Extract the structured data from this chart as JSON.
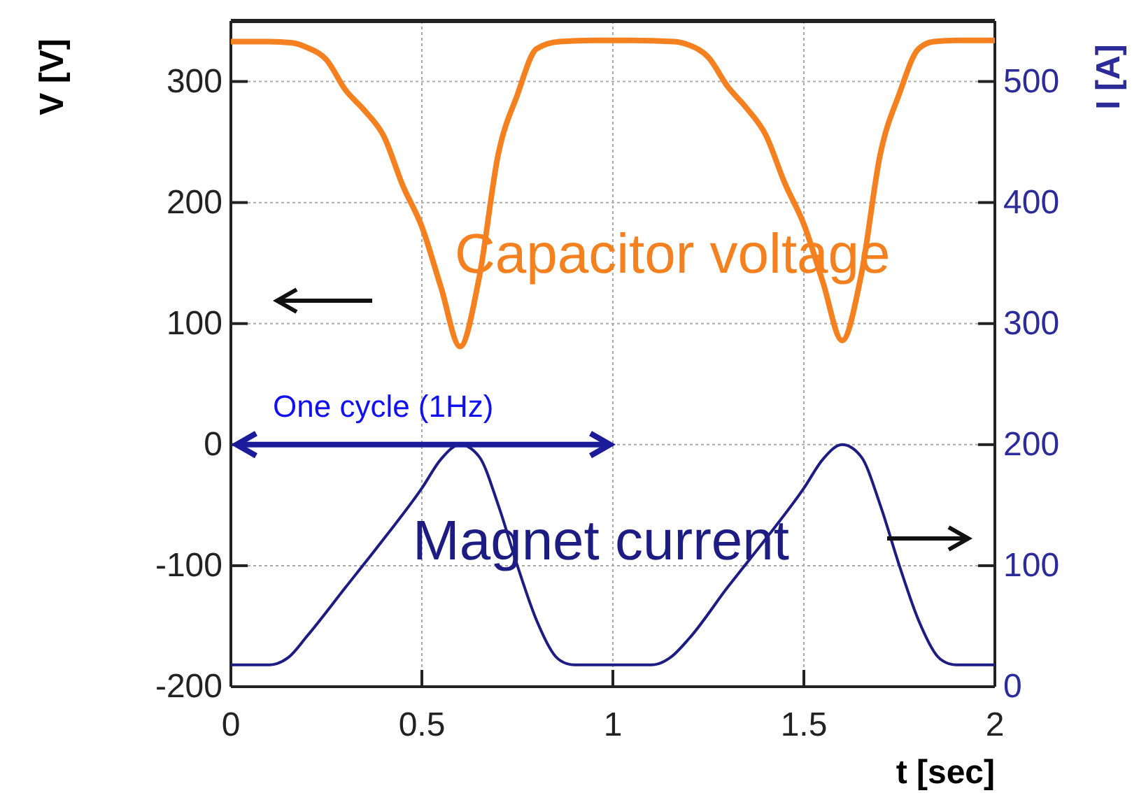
{
  "chart_data": {
    "type": "line",
    "xlabel": "t [sec]",
    "ylabel": "V [V]",
    "y2label": "I [A]",
    "xlim": [
      0,
      2
    ],
    "xticks": [
      0,
      0.5,
      1,
      1.5,
      2
    ],
    "ylim": [
      -200,
      350
    ],
    "yticks": [
      -200,
      -100,
      0,
      100,
      200,
      300
    ],
    "y2lim": [
      0,
      550
    ],
    "y2ticks": [
      0,
      100,
      200,
      300,
      400,
      500
    ],
    "grid": true,
    "line_style": "solid",
    "marker": "none",
    "series": [
      {
        "name": "Capacitor voltage",
        "color": "#f5801f",
        "x": [
          0,
          0.1,
          0.16,
          0.2,
          0.25,
          0.3,
          0.35,
          0.4,
          0.45,
          0.5,
          0.55,
          0.6,
          0.65,
          0.7,
          0.75,
          0.8,
          0.86,
          0.95,
          1.05,
          1.16,
          1.2,
          1.25,
          1.3,
          1.35,
          1.4,
          1.45,
          1.5,
          1.55,
          1.6,
          1.65,
          1.7,
          1.75,
          1.8,
          1.84,
          1.9,
          2
        ],
        "values": [
          333,
          333,
          332,
          328,
          318,
          293,
          276,
          255,
          214,
          180,
          130,
          81,
          138,
          240,
          289,
          327,
          333,
          334,
          334,
          333,
          330,
          320,
          296,
          278,
          256,
          216,
          182,
          134,
          86,
          140,
          240,
          290,
          327,
          333,
          334,
          334
        ]
      },
      {
        "name": "Magnet current",
        "color": "#1c1c82",
        "axis": "y2",
        "x": [
          0,
          0.1,
          0.12,
          0.15,
          0.2,
          0.3,
          0.4,
          0.5,
          0.55,
          0.6,
          0.65,
          0.7,
          0.75,
          0.8,
          0.85,
          0.88,
          0.9,
          1.0,
          1.1,
          1.12,
          1.15,
          1.2,
          1.3,
          1.4,
          1.5,
          1.55,
          1.6,
          1.65,
          1.7,
          1.75,
          1.8,
          1.85,
          1.88,
          1.9,
          2
        ],
        "values": [
          18,
          18,
          19,
          24,
          42,
          82,
          122,
          164,
          188,
          200,
          190,
          150,
          100,
          55,
          25,
          19,
          18,
          18,
          18,
          19,
          24,
          40,
          82,
          122,
          164,
          188,
          200,
          190,
          150,
          100,
          55,
          25,
          19,
          18,
          18
        ]
      }
    ],
    "annotations": [
      "One cycle (1Hz)"
    ]
  }
}
